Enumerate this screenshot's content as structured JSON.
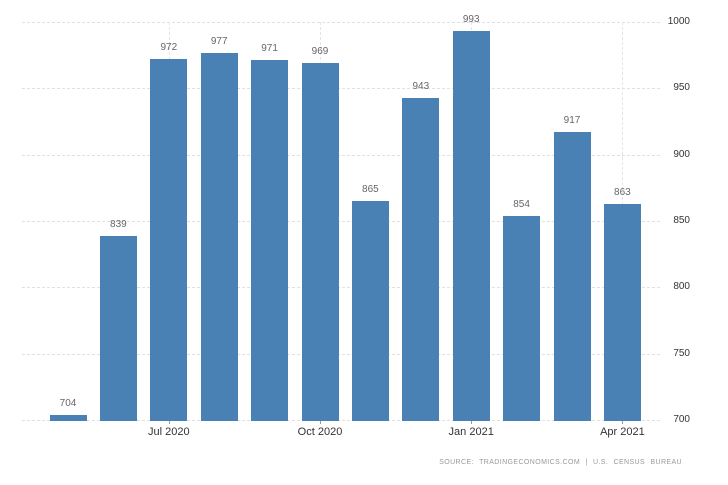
{
  "chart_data": {
    "type": "bar",
    "values": [
      704,
      839,
      972,
      977,
      971,
      969,
      865,
      943,
      993,
      854,
      917,
      863
    ],
    "x_ticks": [
      {
        "bar_index": 2,
        "label": "Jul 2020"
      },
      {
        "bar_index": 5,
        "label": "Oct 2020"
      },
      {
        "bar_index": 8,
        "label": "Jan 2021"
      },
      {
        "bar_index": 11,
        "label": "Apr 2021"
      }
    ],
    "y_ticks": [
      700,
      750,
      800,
      850,
      900,
      950,
      1000
    ],
    "ylim": [
      700,
      1000
    ],
    "y_axis_side": "right",
    "grid": true,
    "value_labels_shown": true,
    "bar_color": "#4a81b4",
    "source_text": "SOURCE: TRADINGECONOMICS.COM | U.S. CENSUS BUREAU"
  }
}
